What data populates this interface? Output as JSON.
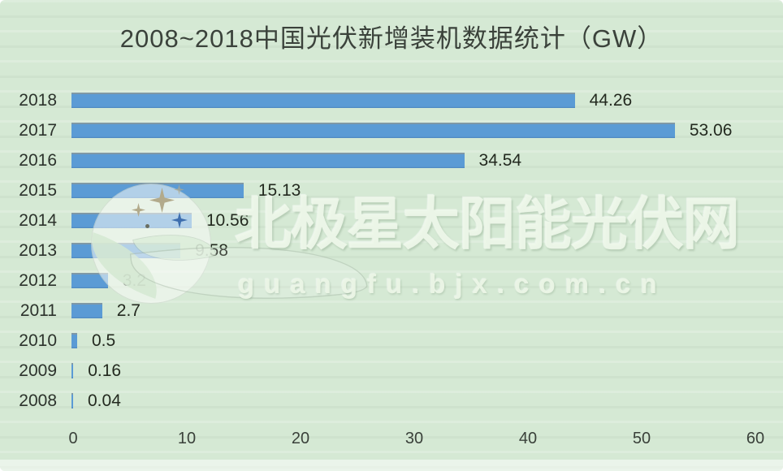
{
  "title": "2008~2018中国光伏新增装机数据统计（GW）",
  "watermark": {
    "logo_name": "polaris-moon-star-logo",
    "text_cn": "北极星太阳能光伏网",
    "text_en": "guangfu.bjx.com.cn"
  },
  "colors": {
    "background": "#d5e9d4",
    "bar": "#5b9bd5",
    "bar_top_edge": "#7f98a6",
    "label_text": "#2c322c",
    "title_text": "#3b423b",
    "watermark_text": "#eef7e9",
    "logo_star_khaki": "#b2aa8b",
    "logo_star_blue": "#3e6eae"
  },
  "chart_data": {
    "type": "bar",
    "orientation": "horizontal",
    "title": "2008~2018中国光伏新增装机数据统计（GW）",
    "categories": [
      "2018",
      "2017",
      "2016",
      "2015",
      "2014",
      "2013",
      "2012",
      "2011",
      "2010",
      "2009",
      "2008"
    ],
    "values": [
      44.26,
      53.06,
      34.54,
      15.13,
      10.56,
      9.58,
      3.2,
      2.7,
      0.5,
      0.16,
      0.04
    ],
    "data_labels": [
      "44.26",
      "53.06",
      "34.54",
      "15.13",
      "10.56",
      "9.58",
      "3.2",
      "2.7",
      "0.5",
      "0.16",
      "0.04"
    ],
    "xlabel": "",
    "ylabel": "",
    "xlim": [
      0,
      60
    ],
    "x_ticks": [
      0,
      10,
      20,
      30,
      40,
      50,
      60
    ],
    "grid": false,
    "legend": null,
    "units": "GW"
  }
}
